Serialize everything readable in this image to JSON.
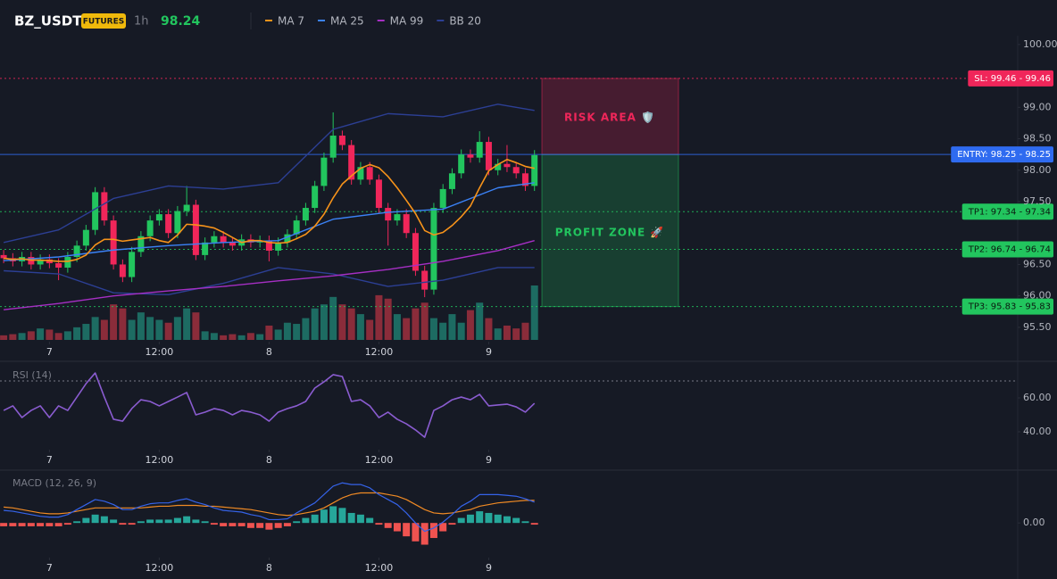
{
  "header": {
    "symbol": "BZ_USDT",
    "badge": "FUTURES",
    "interval": "1h",
    "price": 98.24
  },
  "chart_data": [
    {
      "type": "candlestick",
      "up_color": "#22c55e",
      "down_color": "#f0265a",
      "volume_up_color": "#1d6b62",
      "volume_down_color": "#8a2c3a",
      "open": [
        96.65,
        96.6,
        96.55,
        96.62,
        96.5,
        96.58,
        96.52,
        96.45,
        96.62,
        96.8,
        97.05,
        97.65,
        97.2,
        96.5,
        96.3,
        96.7,
        96.95,
        97.2,
        97.3,
        97.0,
        97.35,
        97.45,
        96.65,
        96.85,
        96.95,
        96.85,
        96.8,
        96.9,
        96.85,
        96.88,
        96.72,
        96.85,
        96.98,
        97.2,
        97.4,
        97.75,
        98.2,
        98.55,
        98.4,
        97.85,
        98.05,
        97.85,
        97.4,
        97.2,
        97.3,
        97.0,
        96.4,
        96.1,
        97.4,
        97.7,
        97.95,
        98.25,
        98.2,
        98.45,
        98.0,
        98.1,
        98.05,
        97.95,
        97.75
      ],
      "high": [
        96.73,
        96.68,
        96.7,
        96.7,
        96.66,
        96.66,
        96.6,
        96.7,
        96.88,
        97.13,
        97.73,
        97.73,
        97.28,
        96.58,
        96.78,
        97.03,
        97.28,
        97.38,
        97.38,
        97.43,
        97.75,
        97.53,
        96.93,
        97.03,
        97.03,
        96.93,
        96.98,
        96.98,
        96.96,
        96.96,
        96.93,
        97.06,
        97.28,
        97.48,
        97.83,
        98.28,
        98.92,
        98.63,
        98.48,
        98.13,
        98.13,
        97.93,
        97.48,
        97.38,
        97.38,
        97.08,
        96.48,
        97.48,
        97.78,
        98.03,
        98.33,
        98.33,
        98.62,
        98.53,
        98.18,
        98.4,
        98.13,
        98.03,
        98.32
      ],
      "low": [
        96.52,
        96.47,
        96.47,
        96.42,
        96.42,
        96.44,
        96.25,
        96.37,
        96.54,
        96.72,
        96.97,
        97.12,
        96.42,
        96.22,
        96.22,
        96.62,
        96.87,
        97.12,
        96.92,
        96.92,
        97.27,
        96.57,
        96.57,
        96.77,
        96.77,
        96.72,
        96.72,
        96.77,
        96.77,
        96.55,
        96.64,
        96.77,
        96.9,
        97.12,
        97.32,
        97.67,
        98.12,
        98.32,
        97.77,
        97.77,
        97.77,
        97.32,
        96.8,
        97.12,
        96.92,
        96.32,
        95.98,
        96.02,
        97.32,
        97.62,
        97.87,
        98.12,
        98.12,
        97.92,
        97.92,
        97.97,
        97.87,
        97.67,
        97.67
      ],
      "close": [
        96.6,
        96.55,
        96.62,
        96.5,
        96.58,
        96.52,
        96.45,
        96.62,
        96.8,
        97.05,
        97.65,
        97.2,
        96.5,
        96.3,
        96.7,
        96.95,
        97.2,
        97.3,
        97.0,
        97.35,
        97.45,
        96.65,
        96.85,
        96.95,
        96.85,
        96.8,
        96.9,
        96.85,
        96.88,
        96.72,
        96.85,
        96.98,
        97.2,
        97.4,
        97.75,
        98.2,
        98.55,
        98.4,
        97.85,
        98.05,
        97.85,
        97.4,
        97.2,
        97.3,
        97.0,
        96.4,
        96.1,
        97.4,
        97.7,
        97.95,
        98.25,
        98.2,
        98.45,
        98.0,
        98.1,
        98.05,
        97.95,
        97.75,
        98.24
      ],
      "volume": [
        8,
        10,
        12,
        15,
        20,
        18,
        12,
        15,
        22,
        28,
        40,
        35,
        62,
        55,
        35,
        48,
        40,
        35,
        30,
        40,
        55,
        48,
        15,
        12,
        8,
        10,
        8,
        12,
        10,
        25,
        18,
        30,
        28,
        38,
        55,
        62,
        75,
        62,
        55,
        45,
        35,
        78,
        72,
        45,
        38,
        55,
        65,
        38,
        30,
        45,
        30,
        52,
        65,
        38,
        20,
        25,
        20,
        30,
        95
      ],
      "lines": [
        {
          "name": "MA 7",
          "color": "#f7931a",
          "values": [
            96.6,
            96.58,
            96.59,
            96.57,
            96.57,
            96.56,
            96.55,
            96.55,
            96.58,
            96.65,
            96.81,
            96.9,
            96.9,
            96.87,
            96.89,
            96.91,
            96.93,
            96.88,
            96.85,
            96.97,
            97.14,
            97.13,
            97.11,
            97.08,
            97.01,
            96.93,
            96.85,
            96.88,
            96.88,
            96.85,
            96.84,
            96.85,
            96.91,
            96.98,
            97.11,
            97.3,
            97.56,
            97.78,
            97.91,
            98.03,
            98.09,
            98.04,
            97.9,
            97.72,
            97.52,
            97.31,
            97.04,
            96.97,
            97.01,
            97.12,
            97.26,
            97.43,
            97.72,
            97.99,
            98.09,
            98.17,
            98.12,
            98.06,
            98.03
          ]
        },
        {
          "name": "MA 25",
          "color": "#3b82f6",
          "x": [
            0,
            6,
            12,
            18,
            24,
            30,
            36,
            42,
            48,
            54,
            58
          ],
          "values": [
            96.56,
            96.62,
            96.73,
            96.8,
            96.85,
            96.88,
            97.22,
            97.33,
            97.38,
            97.72,
            97.8
          ]
        },
        {
          "name": "MA 99",
          "color": "#a62fc4",
          "x": [
            0,
            6,
            12,
            18,
            24,
            30,
            36,
            42,
            48,
            54,
            58
          ],
          "values": [
            95.78,
            95.88,
            96.0,
            96.08,
            96.15,
            96.24,
            96.32,
            96.42,
            96.55,
            96.72,
            96.88
          ]
        },
        {
          "name": "BB 20",
          "color": "#2c3f94",
          "x": [
            0,
            6,
            12,
            18,
            24,
            30,
            36,
            42,
            48,
            54,
            58
          ],
          "upper": [
            96.85,
            97.05,
            97.55,
            97.75,
            97.7,
            97.8,
            98.65,
            98.9,
            98.85,
            99.05,
            98.95
          ],
          "lower": [
            96.4,
            96.35,
            96.05,
            96.02,
            96.2,
            96.45,
            96.35,
            96.15,
            96.25,
            96.45,
            96.45
          ]
        }
      ],
      "ylim": [
        95.3,
        100.14
      ],
      "yticks": [
        {
          "value": 100,
          "label": "100.00"
        },
        {
          "value": 99,
          "label": "99.00"
        },
        {
          "value": 98.5,
          "label": "98.50"
        },
        {
          "value": 98,
          "label": "98.00"
        },
        {
          "value": 97.5,
          "label": "97.50"
        },
        {
          "value": 96.5,
          "label": "96.50"
        },
        {
          "value": 96,
          "label": "96.00"
        },
        {
          "value": 95.5,
          "label": "95.50"
        }
      ],
      "xlim": [
        -0.4,
        110.8
      ],
      "xticks": [
        {
          "value": 5,
          "label": "7"
        },
        {
          "value": 17,
          "label": "12:00"
        },
        {
          "value": 29,
          "label": "8"
        },
        {
          "value": 41,
          "label": "12:00"
        },
        {
          "value": 53,
          "label": "9"
        }
      ],
      "levels": [
        {
          "label": "SL: 99.46 - 99.46",
          "value": 99.46,
          "color": "#f0265a",
          "text_color": "#ffffff",
          "style": "dotted"
        },
        {
          "label": "ENTRY: 98.25 - 98.25",
          "value": 98.25,
          "color": "#2f6bf0",
          "text_color": "#ffffff",
          "style": "solid"
        },
        {
          "label": "TP1: 97.34 - 97.34",
          "value": 97.34,
          "color": "#22c55e",
          "text_color": "#0b1a10",
          "style": "dotted"
        },
        {
          "label": "TP2: 96.74 - 96.74",
          "value": 96.74,
          "color": "#22c55e",
          "text_color": "#0b1a10",
          "style": "dotted"
        },
        {
          "label": "TP3: 95.83 - 95.83",
          "value": 95.83,
          "color": "#22c55e",
          "text_color": "#0b1a10",
          "style": "dotted"
        }
      ],
      "zones": [
        {
          "label": "RISK AREA 🛡️",
          "range": [
            99.46,
            98.25
          ],
          "color": "#f0265a"
        },
        {
          "label": "PROFIT ZONE 🚀",
          "range": [
            98.25,
            95.83
          ],
          "color": "#22c55e"
        }
      ]
    },
    {
      "type": "line",
      "title": "RSI (14)",
      "color": "#8a5cd0",
      "values": [
        52.6,
        55.3,
        48.4,
        52.6,
        55.3,
        48.4,
        55.3,
        52.6,
        60.5,
        68.4,
        74.7,
        60.5,
        47.4,
        46.3,
        53.7,
        58.9,
        57.9,
        55.3,
        57.9,
        60.5,
        63.2,
        50.0,
        51.6,
        53.7,
        52.6,
        50.0,
        52.6,
        51.6,
        50.0,
        46.3,
        51.6,
        53.7,
        55.3,
        57.9,
        65.8,
        69.5,
        73.7,
        72.6,
        57.9,
        58.9,
        55.3,
        48.4,
        51.6,
        47.4,
        44.7,
        41.1,
        36.8,
        52.6,
        55.3,
        58.9,
        60.5,
        58.9,
        62.1,
        55.3,
        55.8,
        56.3,
        54.7,
        51.6,
        56.8
      ],
      "levels": [
        70
      ],
      "ylim": [
        30,
        80
      ],
      "yticks": [
        {
          "value": 60,
          "label": "60.00"
        },
        {
          "value": 40,
          "label": "40.00"
        }
      ],
      "xlim": [
        -0.4,
        110.8
      ],
      "xticks": [
        {
          "value": 5,
          "label": "7"
        },
        {
          "value": 17,
          "label": "12:00"
        },
        {
          "value": 29,
          "label": "8"
        },
        {
          "value": 41,
          "label": "12:00"
        },
        {
          "value": 53,
          "label": "9"
        }
      ]
    },
    {
      "type": "macd",
      "title": "MACD (12, 26, 9)",
      "macd_color": "#3563e9",
      "signal_color": "#f08a24",
      "hist_up_color": "#26a69a",
      "hist_down_color": "#ef5350",
      "macd": [
        0.075,
        0.07,
        0.06,
        0.05,
        0.04,
        0.035,
        0.035,
        0.05,
        0.08,
        0.11,
        0.14,
        0.13,
        0.11,
        0.08,
        0.08,
        0.1,
        0.115,
        0.12,
        0.12,
        0.135,
        0.145,
        0.125,
        0.11,
        0.09,
        0.075,
        0.07,
        0.065,
        0.05,
        0.04,
        0.02,
        0.02,
        0.025,
        0.06,
        0.09,
        0.12,
        0.17,
        0.22,
        0.24,
        0.23,
        0.23,
        0.21,
        0.17,
        0.14,
        0.11,
        0.06,
        0.0,
        -0.05,
        -0.03,
        0.005,
        0.05,
        0.1,
        0.13,
        0.17,
        0.17,
        0.17,
        0.165,
        0.16,
        0.145,
        0.125
      ],
      "signal": [
        0.095,
        0.09,
        0.08,
        0.07,
        0.06,
        0.055,
        0.055,
        0.06,
        0.07,
        0.08,
        0.09,
        0.09,
        0.09,
        0.09,
        0.09,
        0.09,
        0.095,
        0.1,
        0.1,
        0.105,
        0.105,
        0.105,
        0.1,
        0.1,
        0.095,
        0.09,
        0.085,
        0.08,
        0.07,
        0.06,
        0.05,
        0.045,
        0.05,
        0.06,
        0.07,
        0.09,
        0.12,
        0.15,
        0.17,
        0.18,
        0.18,
        0.18,
        0.17,
        0.16,
        0.14,
        0.11,
        0.08,
        0.06,
        0.055,
        0.06,
        0.07,
        0.08,
        0.1,
        0.11,
        0.12,
        0.125,
        0.13,
        0.135,
        0.135
      ],
      "histogram": [
        -0.02,
        -0.02,
        -0.02,
        -0.02,
        -0.02,
        -0.02,
        -0.02,
        -0.01,
        0.01,
        0.03,
        0.05,
        0.04,
        0.02,
        -0.01,
        -0.01,
        0.01,
        0.02,
        0.02,
        0.02,
        0.03,
        0.04,
        0.02,
        0.01,
        -0.01,
        -0.02,
        -0.02,
        -0.02,
        -0.03,
        -0.03,
        -0.04,
        -0.03,
        -0.02,
        0.01,
        0.03,
        0.05,
        0.08,
        0.1,
        0.09,
        0.06,
        0.05,
        0.03,
        -0.01,
        -0.03,
        -0.05,
        -0.08,
        -0.11,
        -0.13,
        -0.09,
        -0.05,
        -0.01,
        0.03,
        0.05,
        0.07,
        0.06,
        0.05,
        0.04,
        0.03,
        0.01,
        -0.01
      ],
      "ylim": [
        -0.25,
        0.3
      ],
      "yticks": [
        {
          "value": 0,
          "label": "0.00"
        }
      ],
      "xlim": [
        -0.4,
        110.8
      ],
      "xticks": [
        {
          "value": 5,
          "label": "7"
        },
        {
          "value": 17,
          "label": "12:00"
        },
        {
          "value": 29,
          "label": "8"
        },
        {
          "value": 41,
          "label": "12:00"
        },
        {
          "value": 53,
          "label": "9"
        }
      ]
    }
  ]
}
